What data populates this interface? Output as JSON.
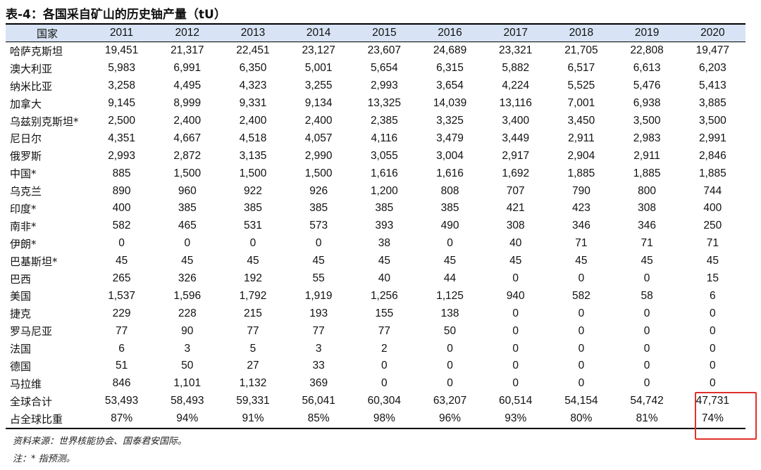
{
  "title": "表-4：各国采自矿山的历史铀产量（tU）",
  "table": {
    "header_country": "国家",
    "years": [
      "2011",
      "2012",
      "2013",
      "2014",
      "2015",
      "2016",
      "2017",
      "2018",
      "2019",
      "2020"
    ],
    "rows": [
      {
        "country": "哈萨克斯坦",
        "values": [
          "19,451",
          "21,317",
          "22,451",
          "23,127",
          "23,607",
          "24,689",
          "23,321",
          "21,705",
          "22,808",
          "19,477"
        ]
      },
      {
        "country": "澳大利亚",
        "values": [
          "5,983",
          "6,991",
          "6,350",
          "5,001",
          "5,654",
          "6,315",
          "5,882",
          "6,517",
          "6,613",
          "6,203"
        ]
      },
      {
        "country": "纳米比亚",
        "values": [
          "3,258",
          "4,495",
          "4,323",
          "3,255",
          "2,993",
          "3,654",
          "4,224",
          "5,525",
          "5,476",
          "5,413"
        ]
      },
      {
        "country": "加拿大",
        "values": [
          "9,145",
          "8,999",
          "9,331",
          "9,134",
          "13,325",
          "14,039",
          "13,116",
          "7,001",
          "6,938",
          "3,885"
        ]
      },
      {
        "country": "乌兹别克斯坦*",
        "values": [
          "2,500",
          "2,400",
          "2,400",
          "2,400",
          "2,385",
          "3,325",
          "3,400",
          "3,450",
          "3,500",
          "3,500"
        ]
      },
      {
        "country": "尼日尔",
        "values": [
          "4,351",
          "4,667",
          "4,518",
          "4,057",
          "4,116",
          "3,479",
          "3,449",
          "2,911",
          "2,983",
          "2,991"
        ]
      },
      {
        "country": "俄罗斯",
        "values": [
          "2,993",
          "2,872",
          "3,135",
          "2,990",
          "3,055",
          "3,004",
          "2,917",
          "2,904",
          "2,911",
          "2,846"
        ]
      },
      {
        "country": "中国*",
        "values": [
          "885",
          "1,500",
          "1,500",
          "1,500",
          "1,616",
          "1,616",
          "1,692",
          "1,885",
          "1,885",
          "1,885"
        ]
      },
      {
        "country": "乌克兰",
        "values": [
          "890",
          "960",
          "922",
          "926",
          "1,200",
          "808",
          "707",
          "790",
          "800",
          "744"
        ]
      },
      {
        "country": "印度*",
        "values": [
          "400",
          "385",
          "385",
          "385",
          "385",
          "385",
          "421",
          "423",
          "308",
          "400"
        ]
      },
      {
        "country": "南非*",
        "values": [
          "582",
          "465",
          "531",
          "573",
          "393",
          "490",
          "308",
          "346",
          "346",
          "250"
        ]
      },
      {
        "country": "伊朗*",
        "values": [
          "0",
          "0",
          "0",
          "0",
          "38",
          "0",
          "40",
          "71",
          "71",
          "71"
        ]
      },
      {
        "country": "巴基斯坦*",
        "values": [
          "45",
          "45",
          "45",
          "45",
          "45",
          "45",
          "45",
          "45",
          "45",
          "45"
        ]
      },
      {
        "country": "巴西",
        "values": [
          "265",
          "326",
          "192",
          "55",
          "40",
          "44",
          "0",
          "0",
          "0",
          "15"
        ]
      },
      {
        "country": "美国",
        "values": [
          "1,537",
          "1,596",
          "1,792",
          "1,919",
          "1,256",
          "1,125",
          "940",
          "582",
          "58",
          "6"
        ]
      },
      {
        "country": "捷克",
        "values": [
          "229",
          "228",
          "215",
          "193",
          "155",
          "138",
          "0",
          "0",
          "0",
          "0"
        ]
      },
      {
        "country": "罗马尼亚",
        "values": [
          "77",
          "90",
          "77",
          "77",
          "77",
          "50",
          "0",
          "0",
          "0",
          "0"
        ]
      },
      {
        "country": "法国",
        "values": [
          "6",
          "3",
          "5",
          "3",
          "2",
          "0",
          "0",
          "0",
          "0",
          "0"
        ]
      },
      {
        "country": "德国",
        "values": [
          "51",
          "50",
          "27",
          "33",
          "0",
          "0",
          "0",
          "0",
          "0",
          "0"
        ]
      },
      {
        "country": "马拉维",
        "values": [
          "846",
          "1,101",
          "1,132",
          "369",
          "0",
          "0",
          "0",
          "0",
          "0",
          "0"
        ]
      },
      {
        "country": "全球合计",
        "values": [
          "53,493",
          "58,493",
          "59,331",
          "56,041",
          "60,304",
          "63,207",
          "60,514",
          "54,154",
          "54,742",
          "47,731"
        ]
      },
      {
        "country": "占全球比重",
        "values": [
          "87%",
          "94%",
          "91%",
          "85%",
          "98%",
          "96%",
          "93%",
          "80%",
          "81%",
          "74%"
        ]
      }
    ]
  },
  "source_note": "资料来源：世界核能协会、国泰君安国际。",
  "remark_note": "注：* 指预测。",
  "highlight_color": "#e0312b",
  "header_bg_color": "#d8e4f5"
}
